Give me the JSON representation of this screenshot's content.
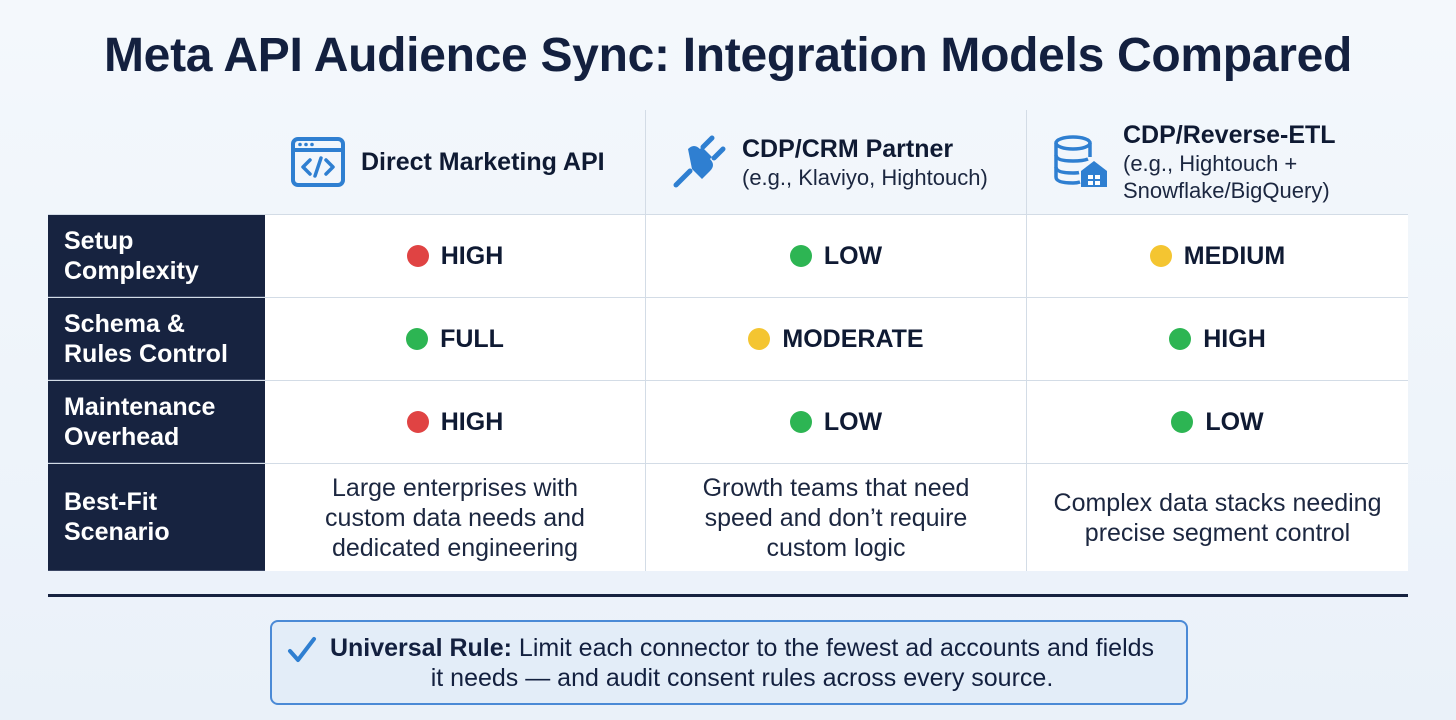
{
  "title": "Meta API Audience Sync: Integration Models Compared",
  "columns": [
    {
      "name": "Direct Marketing API",
      "sub": "",
      "icon": "code-window-icon"
    },
    {
      "name": "CDP/CRM Partner",
      "sub": "(e.g., Klaviyo, Hightouch)",
      "icon": "plug-icon"
    },
    {
      "name": "CDP/Reverse-ETL",
      "sub": "(e.g., Hightouch +\nSnowflake/BigQuery)",
      "icon": "database-warehouse-icon"
    }
  ],
  "rows": [
    {
      "label": "Setup\nComplexity",
      "cells": [
        {
          "value": "HIGH",
          "status": "red"
        },
        {
          "value": "LOW",
          "status": "green"
        },
        {
          "value": "MEDIUM",
          "status": "yellow"
        }
      ]
    },
    {
      "label": "Schema &\nRules Control",
      "cells": [
        {
          "value": "FULL",
          "status": "green"
        },
        {
          "value": "MODERATE",
          "status": "yellow"
        },
        {
          "value": "HIGH",
          "status": "green"
        }
      ]
    },
    {
      "label": "Maintenance\nOverhead",
      "cells": [
        {
          "value": "HIGH",
          "status": "red"
        },
        {
          "value": "LOW",
          "status": "green"
        },
        {
          "value": "LOW",
          "status": "green"
        }
      ]
    }
  ],
  "best_fit": {
    "label": "Best-Fit\nScenario",
    "cells": [
      "Large enterprises with\ncustom data needs and\ndedicated engineering",
      "Growth teams that need\nspeed and don’t require\ncustom logic",
      "Complex data stacks needing\nprecise segment control"
    ]
  },
  "rule": {
    "lead": "Universal Rule:",
    "text": " Limit each connector to the fewest ad accounts and fields\nit needs — and audit consent rules across every source."
  },
  "colors": {
    "red": "#e04343",
    "green": "#2db553",
    "yellow": "#f4c531",
    "navy": "#172340",
    "accent_blue": "#2f7fd1"
  }
}
